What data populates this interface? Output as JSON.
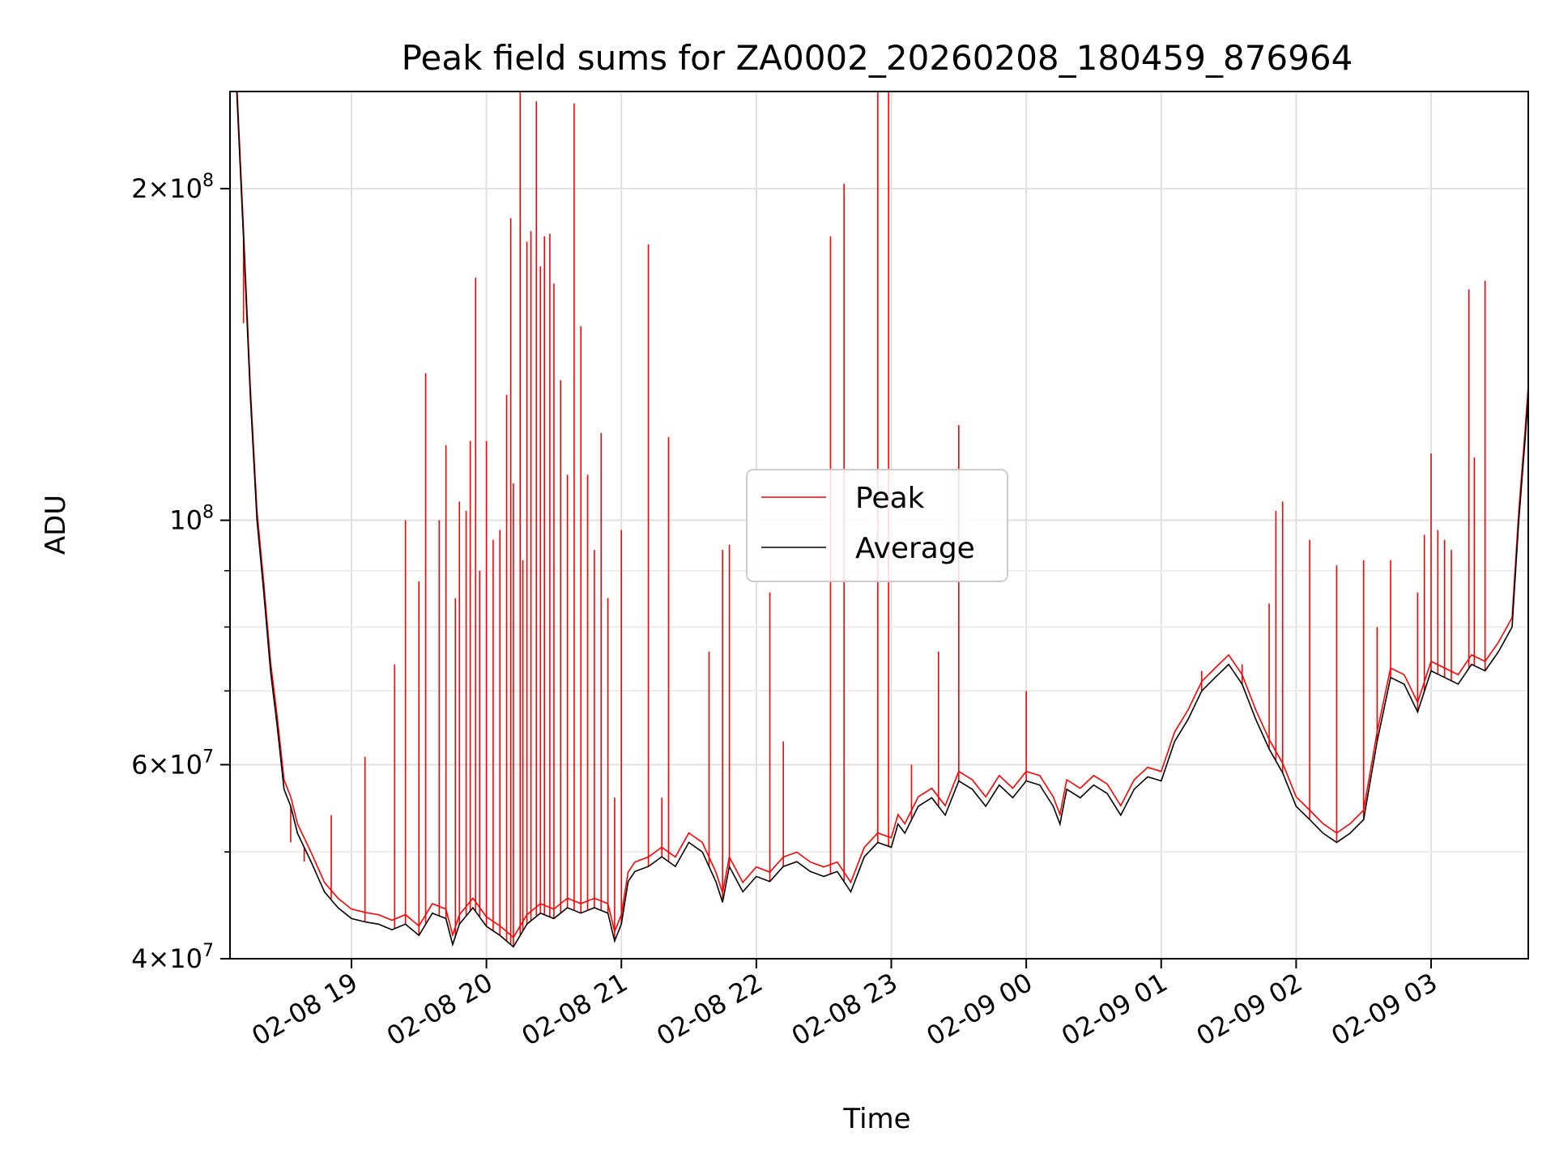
{
  "chart_data": {
    "type": "line",
    "title": "Peak field sums for ZA0002_20260208_180459_876964",
    "xlabel": "Time",
    "ylabel": "ADU",
    "yscale": "log",
    "ylim": [
      40000000,
      245000000
    ],
    "xlim_hours": [
      18.1,
      27.72
    ],
    "grid": true,
    "legend_position": "center",
    "x_ticks": [
      {
        "hour": 19,
        "label": "02-08 19"
      },
      {
        "hour": 20,
        "label": "02-08 20"
      },
      {
        "hour": 21,
        "label": "02-08 21"
      },
      {
        "hour": 22,
        "label": "02-08 22"
      },
      {
        "hour": 23,
        "label": "02-08 23"
      },
      {
        "hour": 24,
        "label": "02-09 00"
      },
      {
        "hour": 25,
        "label": "02-09 01"
      },
      {
        "hour": 26,
        "label": "02-09 02"
      },
      {
        "hour": 27,
        "label": "02-09 03"
      }
    ],
    "y_ticks": [
      {
        "value": 40000000,
        "mant": "4",
        "exp": "7"
      },
      {
        "value": 60000000,
        "mant": "6",
        "exp": "7"
      },
      {
        "value": 100000000,
        "mant": "",
        "exp": "8"
      },
      {
        "value": 200000000,
        "mant": "2",
        "exp": "8"
      }
    ],
    "y_minor_ticks": [
      50000000,
      70000000,
      80000000,
      90000000
    ],
    "series": [
      {
        "name": "Peak",
        "color": "#ff0000",
        "spikes": [
          [
            18.2,
            151000000
          ],
          [
            18.55,
            51000000
          ],
          [
            18.65,
            49000000
          ],
          [
            18.85,
            54000000
          ],
          [
            19.1,
            61000000
          ],
          [
            19.32,
            74000000
          ],
          [
            19.4,
            100000000
          ],
          [
            19.5,
            88000000
          ],
          [
            19.55,
            136000000
          ],
          [
            19.65,
            100000000
          ],
          [
            19.7,
            117000000
          ],
          [
            19.77,
            85000000
          ],
          [
            19.8,
            104000000
          ],
          [
            19.85,
            102000000
          ],
          [
            19.88,
            118000000
          ],
          [
            19.92,
            166000000
          ],
          [
            19.95,
            90000000
          ],
          [
            20.0,
            118000000
          ],
          [
            20.05,
            96000000
          ],
          [
            20.1,
            98000000
          ],
          [
            20.15,
            130000000
          ],
          [
            20.18,
            188000000
          ],
          [
            20.2,
            108000000
          ],
          [
            20.25,
            245000000
          ],
          [
            20.27,
            92000000
          ],
          [
            20.3,
            179000000
          ],
          [
            20.33,
            183000000
          ],
          [
            20.37,
            240000000
          ],
          [
            20.4,
            170000000
          ],
          [
            20.43,
            181000000
          ],
          [
            20.47,
            182000000
          ],
          [
            20.5,
            164000000
          ],
          [
            20.55,
            134000000
          ],
          [
            20.6,
            110000000
          ],
          [
            20.65,
            239000000
          ],
          [
            20.7,
            150000000
          ],
          [
            20.75,
            110000000
          ],
          [
            20.8,
            94000000
          ],
          [
            20.85,
            120000000
          ],
          [
            20.9,
            85000000
          ],
          [
            20.95,
            56000000
          ],
          [
            21.0,
            98000000
          ],
          [
            21.2,
            178000000
          ],
          [
            21.3,
            56000000
          ],
          [
            21.35,
            119000000
          ],
          [
            21.65,
            76000000
          ],
          [
            21.75,
            94000000
          ],
          [
            21.8,
            95000000
          ],
          [
            22.1,
            86000000
          ],
          [
            22.2,
            63000000
          ],
          [
            22.55,
            181000000
          ],
          [
            22.65,
            202000000
          ],
          [
            22.9,
            245000000
          ],
          [
            22.98,
            245000000
          ],
          [
            23.15,
            60000000
          ],
          [
            23.35,
            76000000
          ],
          [
            23.5,
            122000000
          ],
          [
            24.0,
            70000000
          ],
          [
            25.3,
            73000000
          ],
          [
            25.6,
            74000000
          ],
          [
            25.8,
            84000000
          ],
          [
            25.85,
            102000000
          ],
          [
            25.9,
            104000000
          ],
          [
            26.1,
            96000000
          ],
          [
            26.3,
            91000000
          ],
          [
            26.5,
            92000000
          ],
          [
            26.6,
            80000000
          ],
          [
            26.7,
            92000000
          ],
          [
            26.9,
            86000000
          ],
          [
            26.95,
            97000000
          ],
          [
            27.0,
            115000000
          ],
          [
            27.05,
            98000000
          ],
          [
            27.1,
            96000000
          ],
          [
            27.15,
            94000000
          ],
          [
            27.28,
            162000000
          ],
          [
            27.32,
            114000000
          ],
          [
            27.4,
            165000000
          ]
        ]
      },
      {
        "name": "Average",
        "color": "#000000",
        "points": [
          [
            18.1,
            245000000
          ],
          [
            18.15,
            245000000
          ],
          [
            18.2,
            180000000
          ],
          [
            18.25,
            130000000
          ],
          [
            18.3,
            100000000
          ],
          [
            18.35,
            86000000
          ],
          [
            18.4,
            73000000
          ],
          [
            18.45,
            65000000
          ],
          [
            18.5,
            57000000
          ],
          [
            18.55,
            55000000
          ],
          [
            18.6,
            52000000
          ],
          [
            18.7,
            49000000
          ],
          [
            18.8,
            46000000
          ],
          [
            18.9,
            44500000
          ],
          [
            19.0,
            43500000
          ],
          [
            19.1,
            43200000
          ],
          [
            19.2,
            43000000
          ],
          [
            19.3,
            42500000
          ],
          [
            19.4,
            43000000
          ],
          [
            19.5,
            42000000
          ],
          [
            19.6,
            44000000
          ],
          [
            19.7,
            43500000
          ],
          [
            19.75,
            41200000
          ],
          [
            19.8,
            43000000
          ],
          [
            19.9,
            44500000
          ],
          [
            20.0,
            42800000
          ],
          [
            20.1,
            42000000
          ],
          [
            20.2,
            41000000
          ],
          [
            20.3,
            43000000
          ],
          [
            20.4,
            44000000
          ],
          [
            20.5,
            43500000
          ],
          [
            20.6,
            44500000
          ],
          [
            20.7,
            44000000
          ],
          [
            20.8,
            44500000
          ],
          [
            20.9,
            44000000
          ],
          [
            20.95,
            41500000
          ],
          [
            21.0,
            43000000
          ],
          [
            21.05,
            47000000
          ],
          [
            21.1,
            48000000
          ],
          [
            21.2,
            48500000
          ],
          [
            21.3,
            49500000
          ],
          [
            21.4,
            48500000
          ],
          [
            21.5,
            51000000
          ],
          [
            21.6,
            50000000
          ],
          [
            21.7,
            47000000
          ],
          [
            21.75,
            45000000
          ],
          [
            21.8,
            48500000
          ],
          [
            21.9,
            46000000
          ],
          [
            22.0,
            47500000
          ],
          [
            22.1,
            47000000
          ],
          [
            22.2,
            48500000
          ],
          [
            22.3,
            49000000
          ],
          [
            22.4,
            48000000
          ],
          [
            22.5,
            47500000
          ],
          [
            22.6,
            48000000
          ],
          [
            22.7,
            46000000
          ],
          [
            22.8,
            49500000
          ],
          [
            22.9,
            51000000
          ],
          [
            23.0,
            50500000
          ],
          [
            23.05,
            53000000
          ],
          [
            23.1,
            52000000
          ],
          [
            23.2,
            55000000
          ],
          [
            23.3,
            56000000
          ],
          [
            23.4,
            54000000
          ],
          [
            23.5,
            58000000
          ],
          [
            23.6,
            57000000
          ],
          [
            23.7,
            55000000
          ],
          [
            23.8,
            57500000
          ],
          [
            23.9,
            56000000
          ],
          [
            24.0,
            58000000
          ],
          [
            24.1,
            57500000
          ],
          [
            24.2,
            55000000
          ],
          [
            24.25,
            53000000
          ],
          [
            24.3,
            57000000
          ],
          [
            24.4,
            56000000
          ],
          [
            24.5,
            57500000
          ],
          [
            24.6,
            56500000
          ],
          [
            24.7,
            54000000
          ],
          [
            24.8,
            57000000
          ],
          [
            24.9,
            58500000
          ],
          [
            25.0,
            58000000
          ],
          [
            25.1,
            63000000
          ],
          [
            25.2,
            66000000
          ],
          [
            25.3,
            70000000
          ],
          [
            25.4,
            72000000
          ],
          [
            25.5,
            74000000
          ],
          [
            25.6,
            71000000
          ],
          [
            25.7,
            66000000
          ],
          [
            25.8,
            62000000
          ],
          [
            25.9,
            59000000
          ],
          [
            26.0,
            55000000
          ],
          [
            26.1,
            53500000
          ],
          [
            26.2,
            52000000
          ],
          [
            26.3,
            51000000
          ],
          [
            26.4,
            52000000
          ],
          [
            26.5,
            53500000
          ],
          [
            26.6,
            63000000
          ],
          [
            26.7,
            72000000
          ],
          [
            26.8,
            71000000
          ],
          [
            26.9,
            67000000
          ],
          [
            27.0,
            73000000
          ],
          [
            27.1,
            72000000
          ],
          [
            27.2,
            71000000
          ],
          [
            27.3,
            74000000
          ],
          [
            27.4,
            73000000
          ],
          [
            27.5,
            76000000
          ],
          [
            27.6,
            80000000
          ],
          [
            27.65,
            100000000
          ],
          [
            27.7,
            120000000
          ],
          [
            27.72,
            130000000
          ]
        ]
      }
    ]
  }
}
